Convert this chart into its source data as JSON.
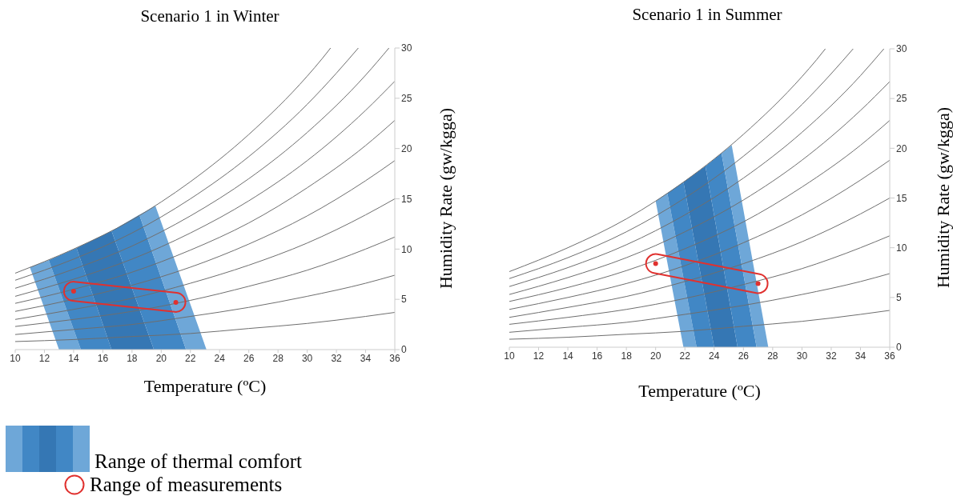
{
  "chart_data": [
    {
      "type": "line",
      "title": "Scenario 1 in Winter",
      "xlabel": "Temperature (ºC)",
      "ylabel": "Humidity Rate (gw/kgga)",
      "xlim": [
        10,
        36
      ],
      "xticks": [
        10,
        12,
        14,
        16,
        18,
        20,
        22,
        24,
        26,
        28,
        30,
        32,
        34,
        36
      ],
      "ylim": [
        0,
        30
      ],
      "yticks": [
        0,
        5,
        10,
        15,
        20,
        25,
        30
      ],
      "legend": "bottom left",
      "series": [
        {
          "type": "area",
          "color": "#6ea7d8",
          "x": [
            13,
            11,
            12.3,
            14.5
          ],
          "values": [
            0,
            8.2,
            8.9,
            0
          ]
        },
        {
          "type": "area",
          "color": "#4187c5",
          "x": [
            14.5,
            12.3,
            14.2,
            16.6
          ],
          "values": [
            0,
            8.9,
            10.1,
            0
          ]
        },
        {
          "type": "area",
          "color": "#3577b4",
          "x": [
            16.6,
            14.2,
            16.6,
            19.5
          ],
          "values": [
            0,
            10.1,
            11.8,
            0
          ]
        },
        {
          "type": "area",
          "color": "#4187c5",
          "x": [
            19.5,
            16.6,
            18.5,
            21.7
          ],
          "values": [
            0,
            11.8,
            13.4,
            0
          ]
        },
        {
          "type": "area",
          "name": "Range of thermal comfort",
          "color": "#6ea7d8",
          "x": [
            21.7,
            18.5,
            19.6,
            23.1
          ],
          "values": [
            0,
            13.4,
            14.3,
            0
          ]
        },
        {
          "color": "#6e6e6e",
          "x": [
            10,
            14,
            18,
            22,
            26,
            30,
            34,
            36
          ],
          "values": [
            0.8,
            1.0,
            1.3,
            1.6,
            2.1,
            2.6,
            3.3,
            3.7
          ]
        },
        {
          "color": "#6e6e6e",
          "x": [
            10,
            14,
            18,
            22,
            26,
            30,
            34,
            36
          ],
          "values": [
            1.5,
            2.0,
            2.5,
            3.3,
            4.2,
            5.3,
            6.6,
            7.4
          ]
        },
        {
          "color": "#6e6e6e",
          "x": [
            10,
            14,
            18,
            22,
            26,
            30,
            34,
            36
          ],
          "values": [
            2.3,
            3.0,
            3.8,
            4.9,
            6.3,
            7.9,
            10.0,
            11.2
          ]
        },
        {
          "color": "#6e6e6e",
          "x": [
            10,
            14,
            18,
            22,
            26,
            30,
            34,
            36
          ],
          "values": [
            3.0,
            4.0,
            5.1,
            6.6,
            8.4,
            10.6,
            13.4,
            15.0
          ]
        },
        {
          "color": "#6e6e6e",
          "x": [
            10,
            14,
            18,
            22,
            26,
            30,
            34,
            36
          ],
          "values": [
            3.8,
            5.0,
            6.4,
            8.2,
            10.5,
            13.3,
            16.8,
            18.8
          ]
        },
        {
          "color": "#6e6e6e",
          "x": [
            10,
            14,
            18,
            22,
            26,
            30,
            34,
            36
          ],
          "values": [
            4.6,
            6.0,
            7.7,
            9.9,
            12.6,
            16.1,
            20.3,
            22.8
          ]
        },
        {
          "color": "#6e6e6e",
          "x": [
            10,
            14,
            18,
            22,
            26,
            30,
            34,
            36
          ],
          "values": [
            5.3,
            7.0,
            9.0,
            11.6,
            14.8,
            18.8,
            23.8,
            26.7
          ]
        },
        {
          "color": "#6e6e6e",
          "x": [
            10,
            14,
            18,
            22,
            26,
            30,
            34,
            35.6
          ],
          "values": [
            6.1,
            8.0,
            10.3,
            13.3,
            17.0,
            21.6,
            27.3,
            30
          ]
        },
        {
          "color": "#6e6e6e",
          "x": [
            10,
            14,
            18,
            22,
            26,
            30,
            32,
            33.5
          ],
          "values": [
            6.9,
            9.0,
            11.6,
            15.0,
            19.2,
            24.4,
            27.5,
            30
          ]
        },
        {
          "color": "#6e6e6e",
          "x": [
            10,
            14,
            18,
            22,
            26,
            30,
            31,
            31.6
          ],
          "values": [
            7.6,
            10.0,
            12.9,
            16.7,
            21.4,
            27.2,
            28.9,
            30
          ]
        },
        {
          "type": "scatter",
          "name": "Range of measurements",
          "color": "#e0312f",
          "x": [
            14,
            21
          ],
          "values": [
            5.8,
            4.7
          ]
        }
      ]
    },
    {
      "type": "line",
      "title": "Scenario 1 in Summer",
      "xlabel": "Temperature (ºC)",
      "ylabel": "Humidity Rate (gw/kgga)",
      "xlim": [
        10,
        36
      ],
      "xticks": [
        10,
        12,
        14,
        16,
        18,
        20,
        22,
        24,
        26,
        28,
        30,
        32,
        34,
        36
      ],
      "ylim": [
        0,
        30
      ],
      "yticks": [
        0,
        5,
        10,
        15,
        20,
        25,
        30
      ],
      "series": [
        {
          "type": "area",
          "color": "#6ea7d8",
          "x": [
            21.9,
            20,
            20.8,
            22.8
          ],
          "values": [
            0,
            14.7,
            15.5,
            0
          ]
        },
        {
          "type": "area",
          "color": "#4187c5",
          "x": [
            22.8,
            20.8,
            21.9,
            24.0
          ],
          "values": [
            0,
            15.5,
            16.6,
            0
          ]
        },
        {
          "type": "area",
          "color": "#3577b4",
          "x": [
            24.0,
            21.9,
            23.4,
            25.6
          ],
          "values": [
            0,
            16.6,
            18.2,
            0
          ]
        },
        {
          "type": "area",
          "color": "#4187c5",
          "x": [
            25.6,
            23.4,
            24.5,
            26.9
          ],
          "values": [
            0,
            18.2,
            19.5,
            0
          ]
        },
        {
          "type": "area",
          "color": "#6ea7d8",
          "x": [
            26.9,
            24.5,
            25.2,
            27.7
          ],
          "values": [
            0,
            19.5,
            20.3,
            0
          ]
        },
        {
          "color": "#6e6e6e",
          "x": [
            10,
            14,
            18,
            22,
            26,
            30,
            34,
            36
          ],
          "values": [
            0.8,
            1.0,
            1.3,
            1.6,
            2.1,
            2.6,
            3.3,
            3.7
          ]
        },
        {
          "color": "#6e6e6e",
          "x": [
            10,
            14,
            18,
            22,
            26,
            30,
            34,
            36
          ],
          "values": [
            1.5,
            2.0,
            2.5,
            3.3,
            4.2,
            5.3,
            6.6,
            7.4
          ]
        },
        {
          "color": "#6e6e6e",
          "x": [
            10,
            14,
            18,
            22,
            26,
            30,
            34,
            36
          ],
          "values": [
            2.3,
            3.0,
            3.8,
            4.9,
            6.3,
            7.9,
            10.0,
            11.2
          ]
        },
        {
          "color": "#6e6e6e",
          "x": [
            10,
            14,
            18,
            22,
            26,
            30,
            34,
            36
          ],
          "values": [
            3.0,
            4.0,
            5.1,
            6.6,
            8.4,
            10.6,
            13.4,
            15.0
          ]
        },
        {
          "color": "#6e6e6e",
          "x": [
            10,
            14,
            18,
            22,
            26,
            30,
            34,
            36
          ],
          "values": [
            3.8,
            5.0,
            6.4,
            8.2,
            10.5,
            13.3,
            16.8,
            18.8
          ]
        },
        {
          "color": "#6e6e6e",
          "x": [
            10,
            14,
            18,
            22,
            26,
            30,
            34,
            36
          ],
          "values": [
            4.6,
            6.0,
            7.7,
            9.9,
            12.6,
            16.1,
            20.3,
            22.8
          ]
        },
        {
          "color": "#6e6e6e",
          "x": [
            10,
            14,
            18,
            22,
            26,
            30,
            34,
            36
          ],
          "values": [
            5.3,
            7.0,
            9.0,
            11.6,
            14.8,
            18.8,
            23.8,
            26.7
          ]
        },
        {
          "color": "#6e6e6e",
          "x": [
            10,
            14,
            18,
            22,
            26,
            30,
            34,
            35.6
          ],
          "values": [
            6.1,
            8.0,
            10.3,
            13.3,
            17.0,
            21.6,
            27.3,
            30
          ]
        },
        {
          "color": "#6e6e6e",
          "x": [
            10,
            14,
            18,
            22,
            26,
            30,
            32,
            33.5
          ],
          "values": [
            6.9,
            9.0,
            11.6,
            15.0,
            19.2,
            24.4,
            27.5,
            30
          ]
        },
        {
          "color": "#6e6e6e",
          "x": [
            10,
            14,
            18,
            22,
            26,
            30,
            31,
            31.6
          ],
          "values": [
            7.6,
            10.0,
            12.9,
            16.7,
            21.4,
            27.2,
            28.9,
            30
          ]
        },
        {
          "type": "scatter",
          "color": "#e0312f",
          "x": [
            20,
            27
          ],
          "values": [
            8.4,
            6.4
          ]
        }
      ]
    }
  ]
}
